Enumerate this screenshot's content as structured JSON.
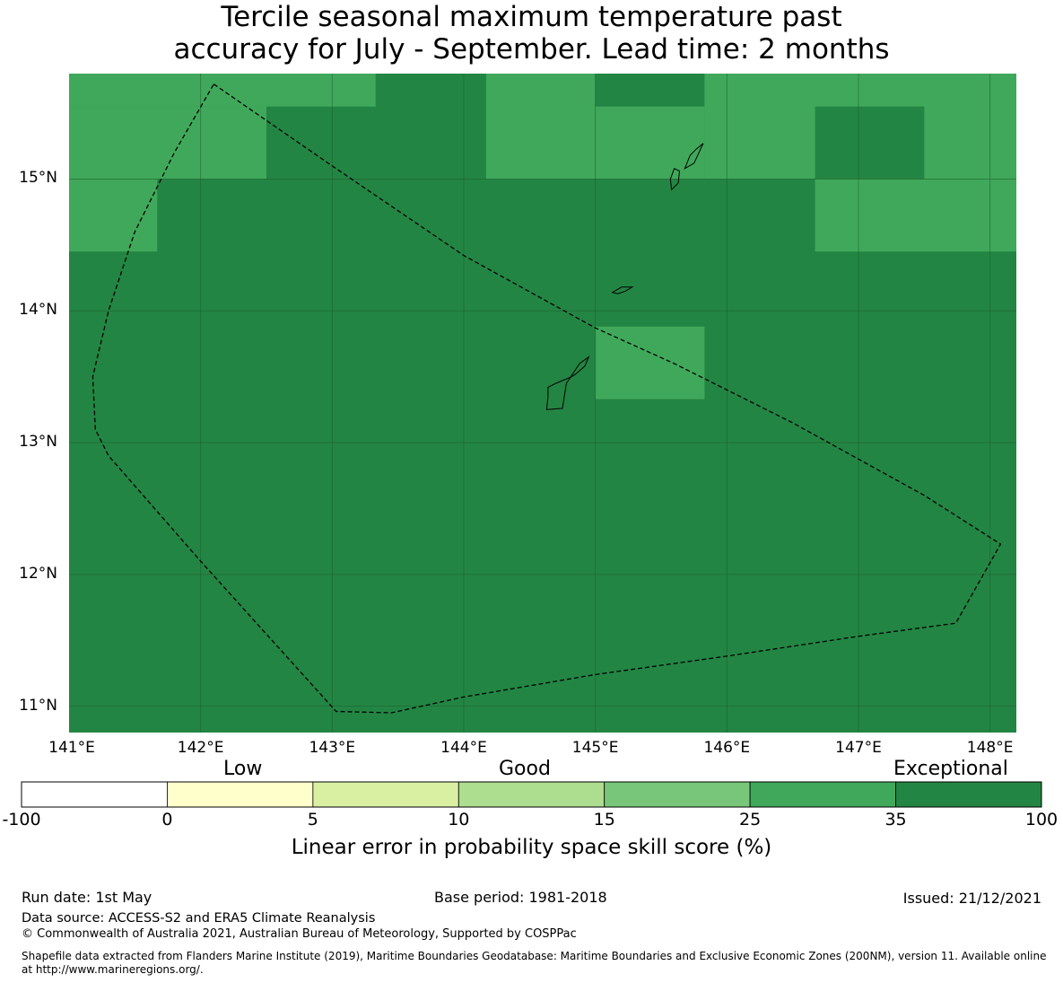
{
  "title": {
    "line1": "Tercile seasonal maximum temperature past",
    "line2": "accuracy for July - September. Lead time: 2 months"
  },
  "map": {
    "lon_range": [
      141.0,
      148.2
    ],
    "lat_range": [
      10.8,
      15.8
    ],
    "lon_ticks": [
      {
        "value": 141,
        "label": "141°E"
      },
      {
        "value": 142,
        "label": "142°E"
      },
      {
        "value": 143,
        "label": "143°E"
      },
      {
        "value": 144,
        "label": "144°E"
      },
      {
        "value": 145,
        "label": "145°E"
      },
      {
        "value": 146,
        "label": "146°E"
      },
      {
        "value": 147,
        "label": "147°E"
      },
      {
        "value": 148,
        "label": "148°E"
      }
    ],
    "lat_ticks": [
      {
        "value": 15,
        "label": "15°N"
      },
      {
        "value": 14,
        "label": "14°N"
      },
      {
        "value": 13,
        "label": "13°N"
      },
      {
        "value": 12,
        "label": "12°N"
      },
      {
        "value": 11,
        "label": "11°N"
      }
    ],
    "background_color": "#238543",
    "cell_color_25_35": "#40a85a",
    "cells_25_35": [
      {
        "lon": [
          141.0,
          143.33
        ],
        "lat": [
          15.55,
          15.8
        ]
      },
      {
        "lon": [
          141.0,
          142.5
        ],
        "lat": [
          15.0,
          15.55
        ]
      },
      {
        "lon": [
          144.17,
          145.0
        ],
        "lat": [
          15.0,
          15.8
        ]
      },
      {
        "lon": [
          145.0,
          145.83
        ],
        "lat": [
          15.0,
          15.55
        ]
      },
      {
        "lon": [
          145.83,
          148.2
        ],
        "lat": [
          15.0,
          15.8
        ]
      },
      {
        "lon": [
          141.0,
          141.67
        ],
        "lat": [
          14.45,
          15.0
        ]
      },
      {
        "lon": [
          146.67,
          148.2
        ],
        "lat": [
          14.45,
          15.0
        ]
      },
      {
        "lon": [
          145.0,
          145.83
        ],
        "lat": [
          13.33,
          13.88
        ]
      }
    ],
    "cells_35_100_overlay": [
      {
        "lon": [
          146.67,
          147.5
        ],
        "lat": [
          15.0,
          15.55
        ]
      }
    ],
    "eez_boundary": [
      [
        142.1,
        15.72
      ],
      [
        143.0,
        15.1
      ],
      [
        144.0,
        14.42
      ],
      [
        145.0,
        13.87
      ],
      [
        145.6,
        13.6
      ],
      [
        146.5,
        13.15
      ],
      [
        147.5,
        12.6
      ],
      [
        148.08,
        12.23
      ],
      [
        147.74,
        11.63
      ],
      [
        147.0,
        11.53
      ],
      [
        146.0,
        11.38
      ],
      [
        145.0,
        11.24
      ],
      [
        144.0,
        11.07
      ],
      [
        143.45,
        10.95
      ],
      [
        143.03,
        10.96
      ],
      [
        142.0,
        12.1
      ],
      [
        141.3,
        12.9
      ],
      [
        141.2,
        13.1
      ],
      [
        141.18,
        13.5
      ],
      [
        141.3,
        14.0
      ],
      [
        141.5,
        14.6
      ],
      [
        141.8,
        15.2
      ],
      [
        142.1,
        15.72
      ]
    ],
    "islands": [
      {
        "name": "guam",
        "outline": [
          [
            144.63,
            13.25
          ],
          [
            144.75,
            13.26
          ],
          [
            144.78,
            13.45
          ],
          [
            144.88,
            13.6
          ],
          [
            144.95,
            13.65
          ],
          [
            144.92,
            13.58
          ],
          [
            144.85,
            13.52
          ],
          [
            144.82,
            13.5
          ],
          [
            144.7,
            13.45
          ],
          [
            144.64,
            13.42
          ],
          [
            144.64,
            13.35
          ],
          [
            144.63,
            13.25
          ]
        ]
      },
      {
        "name": "rota",
        "outline": [
          [
            145.13,
            14.14
          ],
          [
            145.2,
            14.18
          ],
          [
            145.28,
            14.18
          ],
          [
            145.23,
            14.15
          ],
          [
            145.17,
            14.13
          ],
          [
            145.13,
            14.14
          ]
        ]
      },
      {
        "name": "tinian",
        "outline": [
          [
            145.58,
            14.92
          ],
          [
            145.63,
            14.97
          ],
          [
            145.64,
            15.06
          ],
          [
            145.6,
            15.08
          ],
          [
            145.57,
            15.0
          ],
          [
            145.58,
            14.92
          ]
        ]
      },
      {
        "name": "saipan",
        "outline": [
          [
            145.68,
            15.08
          ],
          [
            145.75,
            15.12
          ],
          [
            145.82,
            15.27
          ],
          [
            145.77,
            15.23
          ],
          [
            145.72,
            15.18
          ],
          [
            145.68,
            15.08
          ]
        ]
      }
    ]
  },
  "colorbar": {
    "categories": {
      "low": "Low",
      "good": "Good",
      "exceptional": "Exceptional"
    },
    "colors": [
      "#ffffff",
      "#ffffcc",
      "#d9f0a3",
      "#addd8e",
      "#78c679",
      "#40a85a",
      "#238543"
    ],
    "ticks": [
      "-100",
      "0",
      "5",
      "10",
      "15",
      "25",
      "35",
      "100"
    ],
    "label": "Linear error in probability space skill score (%)"
  },
  "footer": {
    "run_date": "Run date: 1st May",
    "base_period": "Base period: 1981-2018",
    "issued": "Issued: 21/12/2021",
    "data_source": "Data source: ACCESS-S2 and ERA5 Climate Reanalysis",
    "copyright": "© Commonwealth of Australia 2021, Australian Bureau of Meteorology, Supported by COSPPac",
    "shapefile": "Shapefile data extracted from Flanders Marine Institute (2019), Maritime Boundaries Geodatabase: Maritime Boundaries and Exclusive Economic Zones (200NM), version 11. Available online at http://www.marineregions.org/."
  }
}
